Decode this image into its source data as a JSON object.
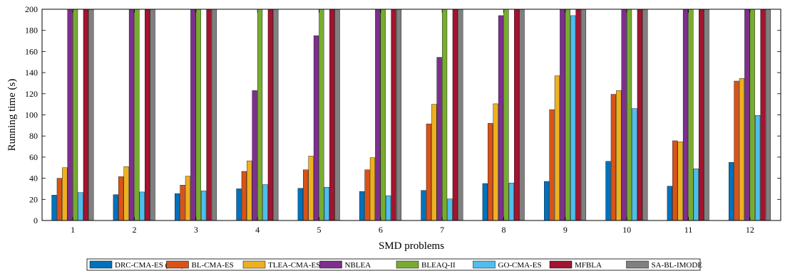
{
  "chart_data": {
    "type": "bar",
    "title": "",
    "xlabel": "SMD problems",
    "ylabel": "Running time (s)",
    "ylim": [
      0,
      200
    ],
    "yticks": [
      0,
      20,
      40,
      60,
      80,
      100,
      120,
      140,
      160,
      180,
      200
    ],
    "categories": [
      "1",
      "2",
      "3",
      "4",
      "5",
      "6",
      "7",
      "8",
      "9",
      "10",
      "11",
      "12"
    ],
    "grid": false,
    "legend_position": "bottom-center",
    "series": [
      {
        "name": "DRC-CMA-ES (ours)",
        "color": "#0072BD",
        "values": [
          24,
          24.5,
          25.5,
          30,
          30.5,
          27.5,
          28.5,
          35,
          37,
          56,
          32.5,
          55
        ]
      },
      {
        "name": "BL-CMA-ES",
        "color": "#D95319",
        "values": [
          40,
          41.5,
          33.5,
          46.5,
          48,
          48,
          91.5,
          92,
          105,
          119.5,
          75.5,
          132
        ]
      },
      {
        "name": "TLEA-CMA-ES",
        "color": "#EDB120",
        "values": [
          50,
          51,
          42,
          56.5,
          61,
          59.5,
          110,
          110.5,
          137,
          123,
          74.5,
          134.5
        ]
      },
      {
        "name": "NBLEA",
        "color": "#7E2F8E",
        "values": [
          200,
          200,
          200,
          123,
          175,
          200,
          154.5,
          194,
          200,
          200,
          200,
          200
        ]
      },
      {
        "name": "BLEAQ-II",
        "color": "#77AC30",
        "values": [
          200,
          200,
          200,
          200,
          200,
          200,
          200,
          200,
          200,
          200,
          200,
          200
        ]
      },
      {
        "name": "GO-CMA-ES",
        "color": "#4DBEEE",
        "values": [
          26.5,
          27,
          28,
          34,
          31.5,
          23.5,
          20.5,
          35.5,
          194,
          106,
          49,
          99.5
        ]
      },
      {
        "name": "MFBLA",
        "color": "#A2142F",
        "values": [
          200,
          200,
          200,
          200,
          200,
          200,
          200,
          200,
          200,
          200,
          200,
          200
        ]
      },
      {
        "name": "SA-BL-IMODE",
        "color": "#808080",
        "values": [
          200,
          200,
          200,
          200,
          200,
          200,
          200,
          200,
          200,
          200,
          200,
          200
        ]
      }
    ]
  }
}
